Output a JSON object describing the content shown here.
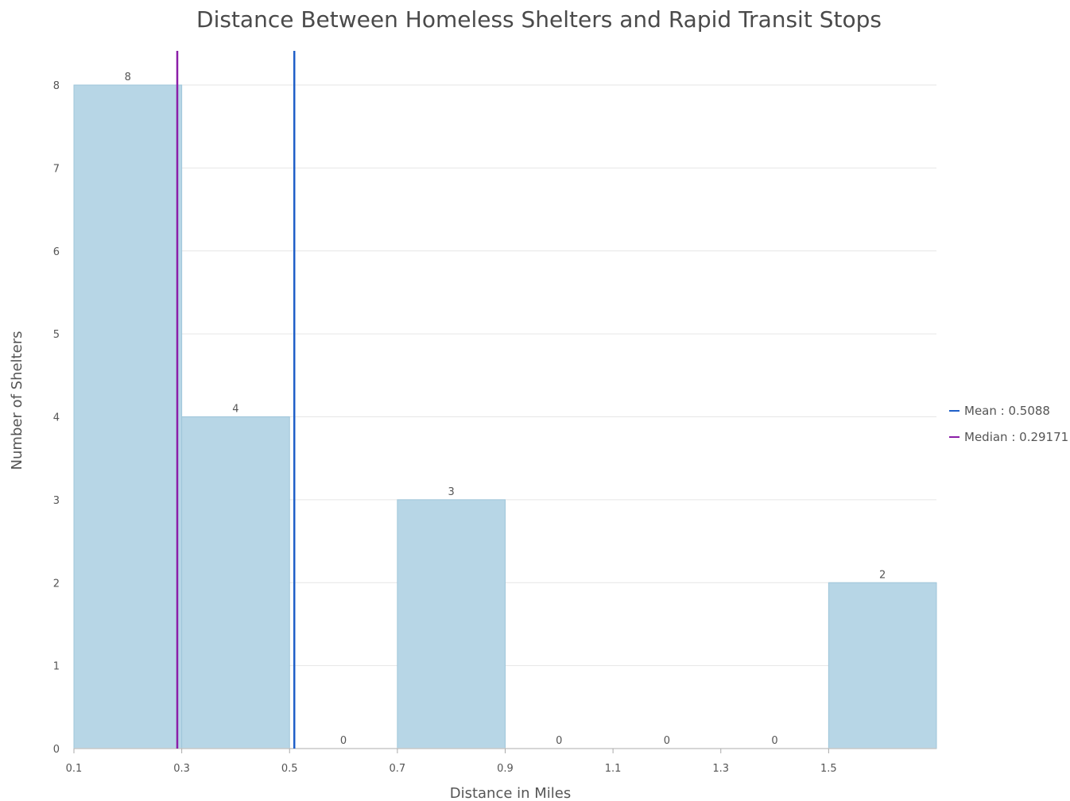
{
  "chart_data": {
    "type": "bar",
    "title": "Distance Between Homeless Shelters and Rapid Transit Stops",
    "xlabel": "Distance in Miles",
    "ylabel": "Number of Shelters",
    "bins": [
      {
        "from": 0.1,
        "to": 0.3,
        "count": 8
      },
      {
        "from": 0.3,
        "to": 0.5,
        "count": 4
      },
      {
        "from": 0.5,
        "to": 0.7,
        "count": 0
      },
      {
        "from": 0.7,
        "to": 0.9,
        "count": 3
      },
      {
        "from": 0.9,
        "to": 1.1,
        "count": 0
      },
      {
        "from": 1.1,
        "to": 1.3,
        "count": 0
      },
      {
        "from": 1.3,
        "to": 1.5,
        "count": 0
      },
      {
        "from": 1.5,
        "to": 1.7,
        "count": 2
      }
    ],
    "x_ticks": [
      "0.1",
      "0.3",
      "0.5",
      "0.7",
      "0.9",
      "1.1",
      "1.3",
      "1.5"
    ],
    "y_ticks": [
      "0",
      "1",
      "2",
      "3",
      "4",
      "5",
      "6",
      "7",
      "8"
    ],
    "xlim": [
      0.1,
      1.7
    ],
    "ylim": [
      0,
      8
    ],
    "grid": true,
    "legend_position": "right",
    "reference_lines": [
      {
        "label": "Mean : 0.5088",
        "value": 0.5088,
        "color": "#1f5fc8"
      },
      {
        "label": "Median : 0.29171",
        "value": 0.29171,
        "color": "#8b1ea8"
      }
    ],
    "bar_color": "#b7d6e6",
    "bar_edge_color": "#9fc6da"
  }
}
